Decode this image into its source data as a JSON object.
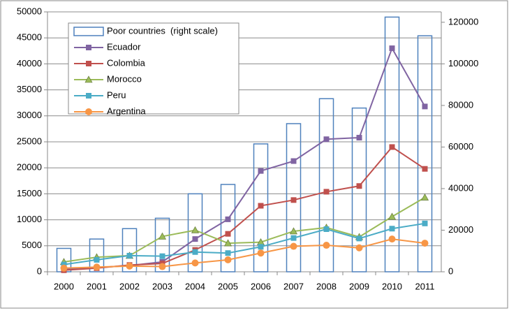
{
  "chart_data": {
    "type": "combo",
    "categories": [
      "2000",
      "2001",
      "2002",
      "2003",
      "2004",
      "2005",
      "2006",
      "2007",
      "2008",
      "2009",
      "2010",
      "2011"
    ],
    "ylim": [
      0,
      50000
    ],
    "yticks": [
      0,
      5000,
      10000,
      15000,
      20000,
      25000,
      30000,
      35000,
      40000,
      45000,
      50000
    ],
    "y2lim": [
      0,
      125000
    ],
    "y2ticks": [
      0,
      20000,
      40000,
      60000,
      80000,
      100000,
      120000
    ],
    "grid": true,
    "legend": "top-left",
    "series": [
      {
        "name": "Poor countries  (right scale)",
        "type": "bar",
        "axis": "y2",
        "color": "#4f81bd",
        "values": [
          11250,
          15750,
          20750,
          25750,
          37500,
          42000,
          61500,
          71250,
          83250,
          78750,
          122500,
          113500
        ]
      },
      {
        "name": "Ecuador",
        "type": "line",
        "marker": "square",
        "color": "#8064a2",
        "values": [
          500,
          800,
          1200,
          1900,
          6300,
          10100,
          19400,
          21300,
          25500,
          25800,
          43000,
          31800
        ]
      },
      {
        "name": "Colombia",
        "type": "line",
        "marker": "square",
        "color": "#c0504d",
        "values": [
          300,
          700,
          1300,
          1600,
          4200,
          7300,
          12700,
          13800,
          15400,
          16500,
          24000,
          19800
        ]
      },
      {
        "name": "Morocco",
        "type": "line",
        "marker": "triangle",
        "color": "#9bbb59",
        "values": [
          1900,
          2800,
          3100,
          6800,
          8000,
          5500,
          5700,
          7800,
          8500,
          6700,
          10600,
          14300
        ]
      },
      {
        "name": "Peru",
        "type": "line",
        "marker": "square",
        "color": "#4bacc6",
        "values": [
          1400,
          2300,
          3100,
          3000,
          3800,
          3600,
          4800,
          6500,
          8200,
          6400,
          8300,
          9300
        ]
      },
      {
        "name": "Argentina",
        "type": "line",
        "marker": "circle",
        "color": "#f79646",
        "values": [
          700,
          900,
          1100,
          1000,
          1700,
          2300,
          3600,
          4900,
          5100,
          4600,
          6300,
          5500
        ]
      }
    ]
  }
}
